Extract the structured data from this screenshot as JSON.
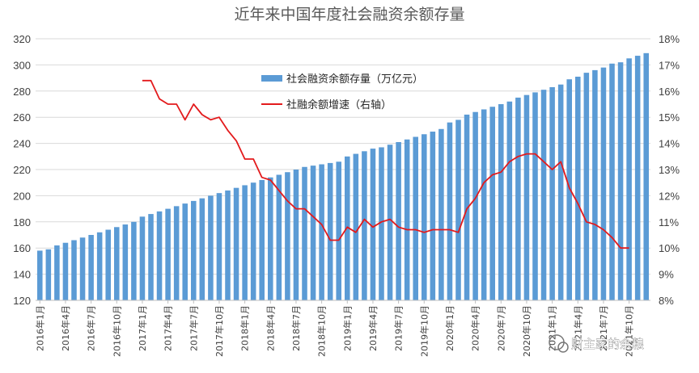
{
  "watermark": "财主家的余粮",
  "chart_data": {
    "type": "bar+line",
    "title": "近年来中国年度社会融资余额存量",
    "legend_position": "top-center",
    "colors": {
      "bar": "#5b9bd5",
      "line": "#e31a1c",
      "axis": "#bfbfbf"
    },
    "y_left": {
      "min": 120,
      "max": 320,
      "step": 20,
      "ticks": [
        "120",
        "140",
        "160",
        "180",
        "200",
        "220",
        "240",
        "260",
        "280",
        "300",
        "320"
      ]
    },
    "y_right": {
      "min": 8,
      "max": 18,
      "step": 1,
      "ticks": [
        "8%",
        "9%",
        "10%",
        "11%",
        "12%",
        "13%",
        "14%",
        "15%",
        "16%",
        "17%",
        "18%"
      ]
    },
    "x_tick_labels": [
      "2016年1月",
      "2016年4月",
      "2016年7月",
      "2016年10月",
      "2017年1月",
      "2017年4月",
      "2017年7月",
      "2017年10月",
      "2018年1月",
      "2018年4月",
      "2018年7月",
      "2018年10月",
      "2019年1月",
      "2019年4月",
      "2019年7月",
      "2019年10月",
      "2020年1月",
      "2020年4月",
      "2020年7月",
      "2020年10月",
      "2021年1月",
      "2021年4月",
      "2021年7月",
      "2021年10月"
    ],
    "series": [
      {
        "name": "社会融资余额存量（万亿元）",
        "type": "bar",
        "axis": "left",
        "values": [
          158,
          159,
          162,
          164,
          166,
          168,
          170,
          172,
          174,
          176,
          178,
          180,
          184,
          186,
          188,
          190,
          192,
          194,
          196,
          198,
          200,
          202,
          204,
          206,
          208,
          210,
          212,
          214,
          216,
          218,
          220,
          222,
          223,
          224,
          225,
          226,
          230,
          232,
          234,
          236,
          237,
          239,
          241,
          243,
          245,
          247,
          249,
          251,
          256,
          258,
          262,
          264,
          266,
          268,
          270,
          272,
          275,
          277,
          279,
          281,
          283,
          285,
          289,
          291,
          294,
          296,
          298,
          301,
          302,
          305,
          307,
          309
        ]
      },
      {
        "name": "社融余额增速（右轴）",
        "type": "line",
        "axis": "right",
        "start_index": 12,
        "values": [
          16.4,
          16.4,
          15.7,
          15.5,
          15.5,
          14.9,
          15.5,
          15.1,
          14.9,
          15.0,
          14.5,
          14.1,
          13.4,
          13.4,
          12.7,
          12.6,
          12.2,
          11.8,
          11.5,
          11.5,
          11.2,
          10.9,
          10.3,
          10.3,
          10.8,
          10.6,
          11.1,
          10.8,
          11.0,
          11.1,
          10.8,
          10.7,
          10.7,
          10.6,
          10.7,
          10.7,
          10.7,
          10.6,
          11.5,
          11.9,
          12.5,
          12.8,
          12.9,
          13.3,
          13.5,
          13.6,
          13.6,
          13.3,
          13.0,
          13.3,
          12.3,
          11.7,
          11.0,
          10.9,
          10.7,
          10.4,
          10.0,
          10.0
        ]
      }
    ]
  }
}
